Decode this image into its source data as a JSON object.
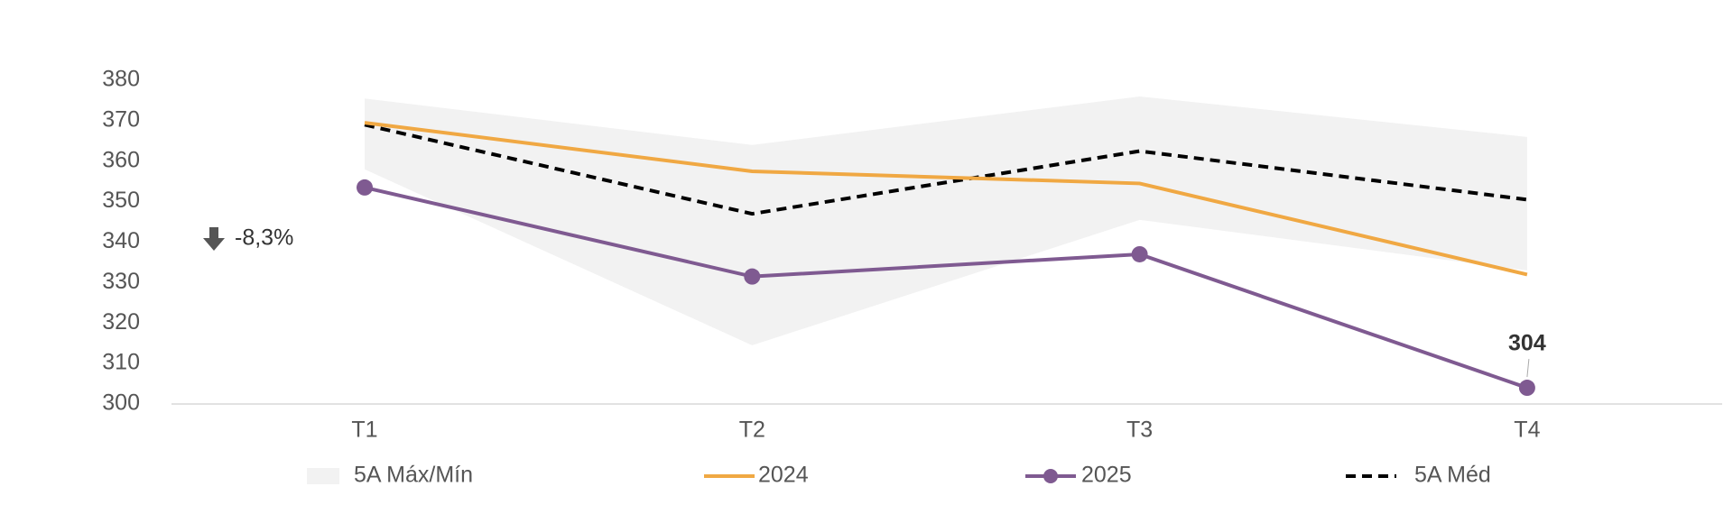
{
  "chart_data": {
    "type": "line",
    "categories": [
      "T1",
      "T2",
      "T3",
      "T4"
    ],
    "ylim": [
      300,
      380
    ],
    "yticks": [
      300,
      310,
      320,
      330,
      340,
      350,
      360,
      370,
      380
    ],
    "band": {
      "name": "5A Máx/Mín",
      "color": "#f2f2f2",
      "max": [
        375.5,
        364,
        376,
        366
      ],
      "min": [
        358,
        314.5,
        345.5,
        333
      ]
    },
    "series": [
      {
        "name": "2024",
        "color": "#f0a843",
        "values": [
          369.5,
          357.5,
          354.5,
          332
        ]
      },
      {
        "name": "2025",
        "color": "#7f5a91",
        "markers": true,
        "values": [
          353.5,
          331.5,
          337,
          304
        ],
        "value_labels": [
          null,
          null,
          null,
          "304"
        ]
      },
      {
        "name": "5A Méd",
        "color": "#000000",
        "dashed": true,
        "values": [
          369,
          347,
          362.5,
          350.5
        ]
      }
    ],
    "annotation": "-8,3%"
  }
}
